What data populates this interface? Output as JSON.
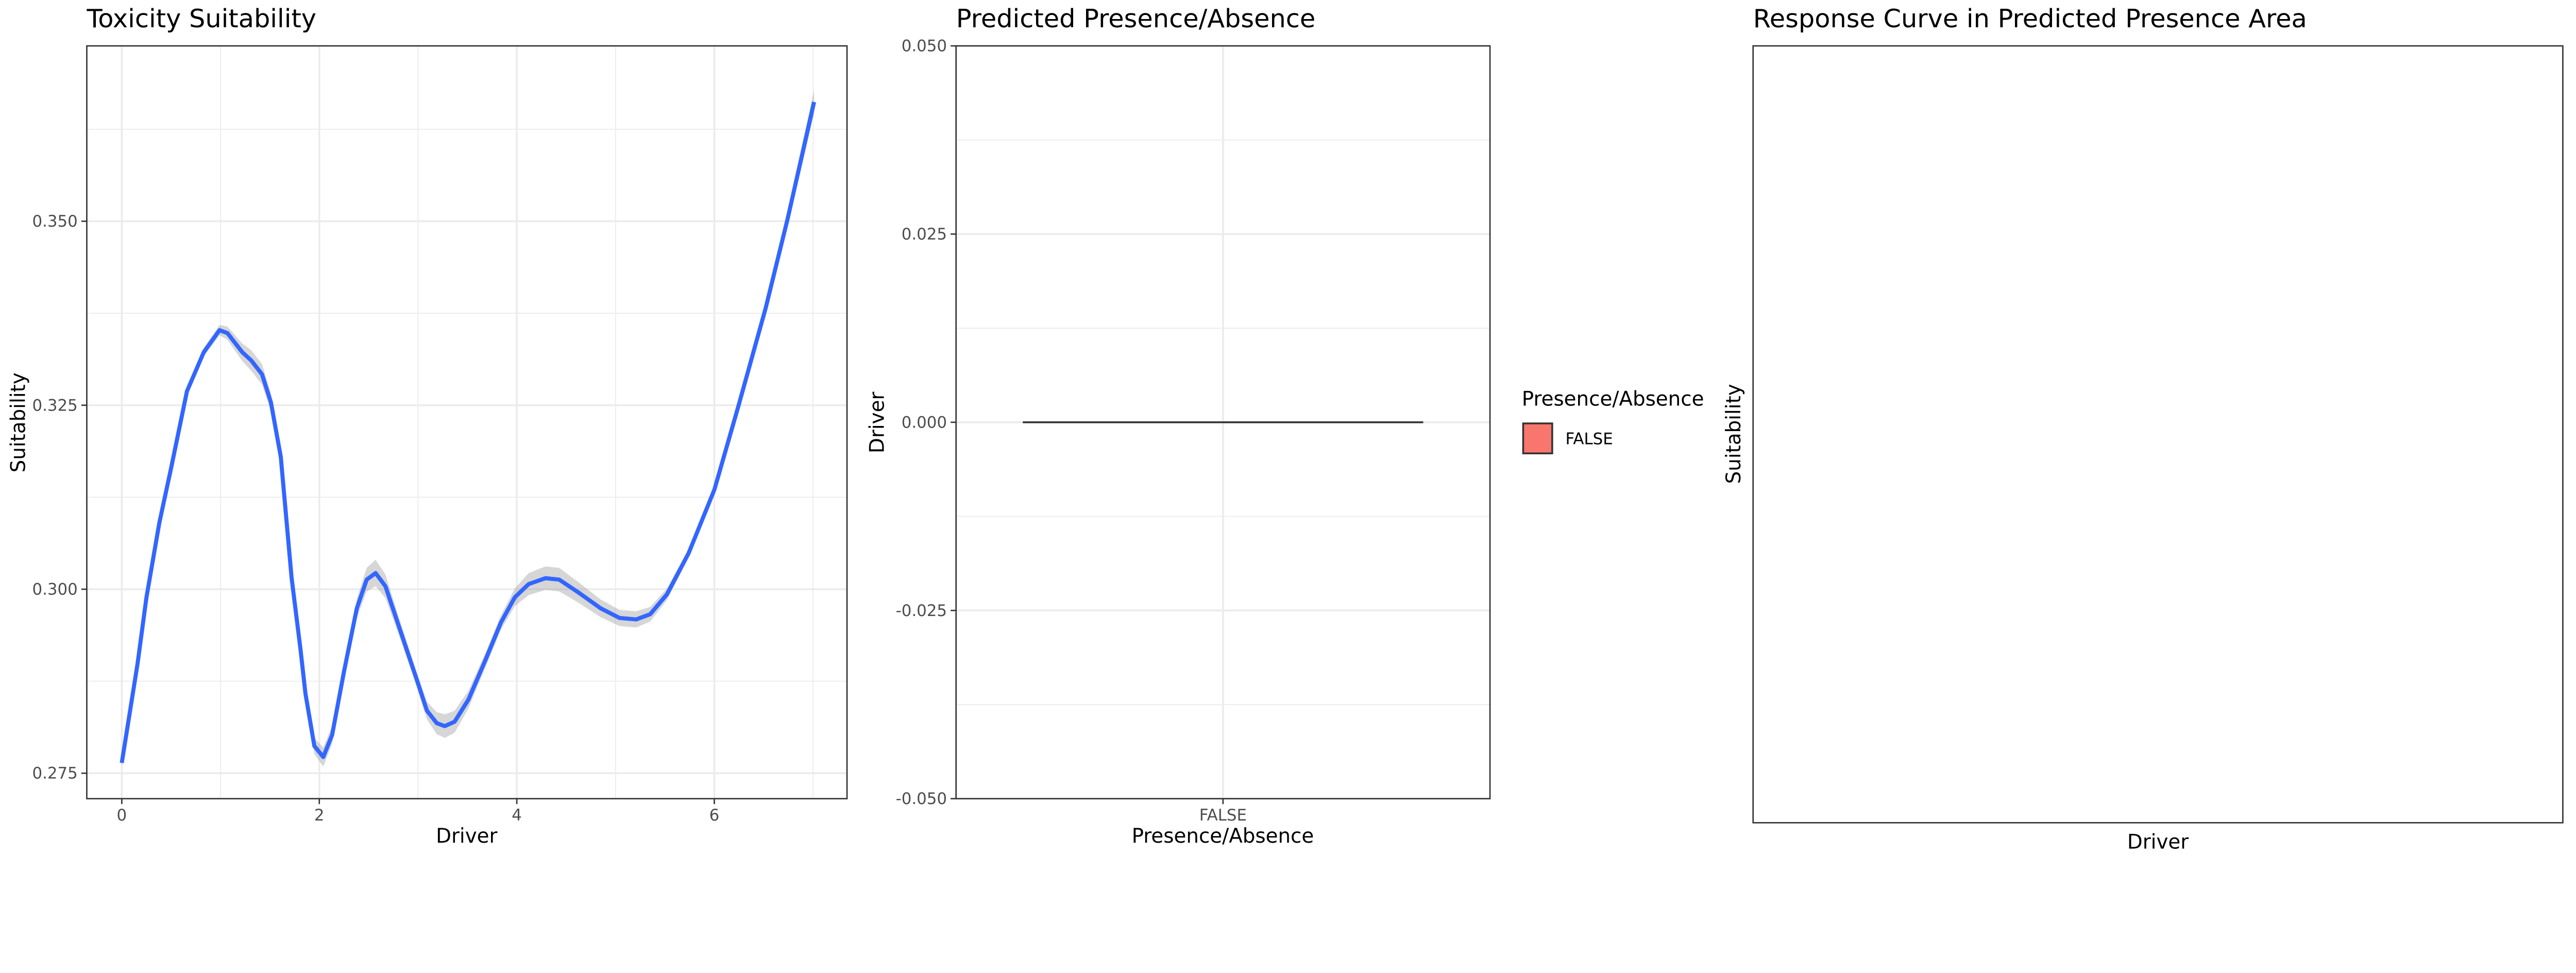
{
  "colors": {
    "line": "#3366FF",
    "ribbon": "#999999",
    "grid": "#EBEBEB",
    "panel_border": "#333333",
    "fill_false": "#F8766D"
  },
  "chart_data": [
    {
      "type": "line",
      "title": "Toxicity Suitability",
      "xlabel": "Driver",
      "ylabel": "Suitability",
      "xlim": [
        -0.35,
        7.35
      ],
      "ylim": [
        0.2711,
        0.3739
      ],
      "xticks": [
        0,
        2,
        4,
        6
      ],
      "xtick_labels": [
        "0",
        "2",
        "4",
        "6"
      ],
      "yticks": [
        0.275,
        0.3,
        0.325,
        0.35
      ],
      "ytick_labels": [
        "0.275",
        "0.300",
        "0.325",
        "0.350"
      ],
      "grid": true,
      "series": [
        {
          "name": "smooth",
          "x": [
            0,
            0.16,
            0.25,
            0.38,
            0.5,
            0.66,
            0.83,
            0.99,
            1.07,
            1.22,
            1.31,
            1.42,
            1.51,
            1.61,
            1.72,
            1.81,
            1.86,
            1.95,
            2.04,
            2.13,
            2.25,
            2.38,
            2.48,
            2.57,
            2.67,
            2.81,
            2.98,
            3.09,
            3.19,
            3.27,
            3.37,
            3.51,
            3.68,
            3.84,
            3.98,
            4.12,
            4.29,
            4.43,
            4.62,
            4.85,
            5.04,
            5.21,
            5.35,
            5.52,
            5.74,
            6.0,
            6.24,
            6.52,
            6.74,
            7.01
          ],
          "y": [
            0.2764,
            0.2899,
            0.2989,
            0.309,
            0.3165,
            0.3269,
            0.3322,
            0.3352,
            0.3348,
            0.3322,
            0.3311,
            0.3292,
            0.3254,
            0.318,
            0.3015,
            0.2918,
            0.2858,
            0.2787,
            0.2772,
            0.2802,
            0.2888,
            0.2974,
            0.3013,
            0.3022,
            0.3004,
            0.2948,
            0.288,
            0.2835,
            0.2818,
            0.2814,
            0.282,
            0.285,
            0.2903,
            0.2955,
            0.2989,
            0.3007,
            0.3015,
            0.3013,
            0.2996,
            0.2974,
            0.2961,
            0.2959,
            0.2966,
            0.2993,
            0.3049,
            0.3135,
            0.3247,
            0.3382,
            0.3502,
            0.3662
          ],
          "ci_halfwidth": [
            0.0005,
            0.0005,
            0.0005,
            0.0005,
            0.0005,
            0.0005,
            0.0006,
            0.0007,
            0.0009,
            0.0012,
            0.0014,
            0.0014,
            0.0012,
            0.001,
            0.0008,
            0.0008,
            0.0009,
            0.0011,
            0.0013,
            0.0012,
            0.001,
            0.0013,
            0.0016,
            0.0018,
            0.0016,
            0.0012,
            0.001,
            0.0012,
            0.0015,
            0.0016,
            0.0015,
            0.0012,
            0.001,
            0.001,
            0.0012,
            0.0015,
            0.0016,
            0.0016,
            0.0014,
            0.0012,
            0.0011,
            0.0011,
            0.001,
            0.0008,
            0.0006,
            0.0005,
            0.0006,
            0.0008,
            0.0011,
            0.0016
          ]
        }
      ]
    },
    {
      "type": "bar",
      "title": "Predicted Presence/Absence",
      "xlabel": "Presence/Absence",
      "ylabel": "Driver",
      "categories": [
        "FALSE"
      ],
      "values": [
        0
      ],
      "ylim": [
        -0.05,
        0.05
      ],
      "yticks": [
        -0.05,
        -0.025,
        0,
        0.025,
        0.05
      ],
      "ytick_labels": [
        "-0.050",
        "-0.025",
        "0.000",
        "0.025",
        "0.050"
      ],
      "grid": true,
      "legend": {
        "title": "Presence/Absence",
        "entries": [
          "FALSE"
        ],
        "placement": "right"
      }
    },
    {
      "type": "line",
      "title": "Response Curve in Predicted Presence Area",
      "xlabel": "Driver",
      "ylabel": "Suitability",
      "series": [],
      "grid": false
    }
  ]
}
